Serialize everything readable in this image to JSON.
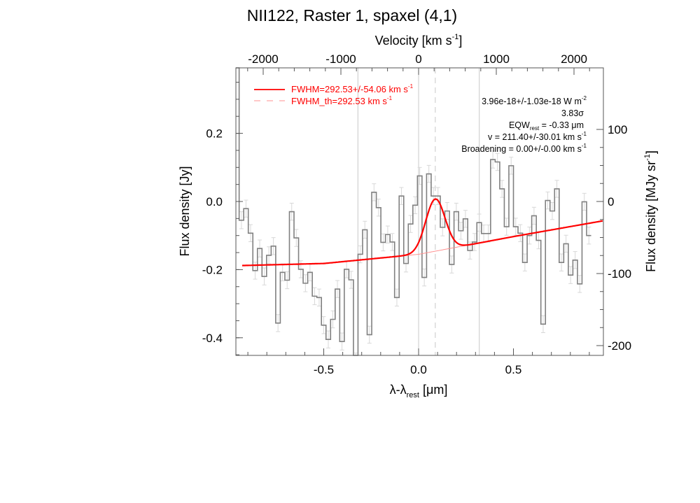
{
  "chart_data": {
    "type": "line",
    "title": "NII122, Raster 1, spaxel (4,1)",
    "xlabel": "λ-λ",
    "xlabel_sub": "rest",
    "xlabel_unit": " [μm]",
    "ylabel": "Flux density [Jy]",
    "y2label": "Flux density [MJy sr",
    "y2label_sup": "-1",
    "y2label_end": "]",
    "x2label": "Velocity [km s",
    "x2label_sup": "-1",
    "x2label_end": "]",
    "xlim": [
      -0.963,
      0.974
    ],
    "ylim": [
      -0.45,
      0.398
    ],
    "xticks": [
      -0.5,
      0.0,
      0.5
    ],
    "xtick_labels": [
      "-0.5",
      "0.0",
      "0.5"
    ],
    "yticks": [
      0.2,
      0.0,
      -0.2,
      -0.4
    ],
    "ytick_labels": [
      "0.2",
      "0.0",
      "-0.2",
      "-0.4"
    ],
    "y2ticks": [
      100,
      0,
      -100,
      -200
    ],
    "y2tick_labels": [
      "100",
      "0",
      "-100",
      "-200"
    ],
    "x2ticks": [
      -2000,
      -1000,
      0,
      1000,
      2000
    ],
    "x2tick_labels": [
      "-2000",
      "-1000",
      "0",
      "1000",
      "2000"
    ],
    "spectrum": {
      "x_start": -0.963,
      "first_bin_width": 0.017,
      "first_bin_value": 0.45,
      "bin_width": 0.0241,
      "values": [
        -0.055,
        -0.021,
        -0.093,
        -0.203,
        -0.138,
        -0.22,
        -0.158,
        -0.131,
        -0.357,
        -0.208,
        -0.231,
        -0.03,
        -0.107,
        -0.199,
        -0.24,
        -0.208,
        -0.278,
        -0.282,
        -0.363,
        -0.405,
        -0.346,
        -0.257,
        -0.411,
        -0.199,
        -0.23,
        -0.47,
        -0.155,
        -0.083,
        -0.391,
        0.027,
        -0.018,
        -0.12,
        -0.097,
        -0.119,
        -0.282,
        0.016,
        -0.182,
        -0.066,
        -0.011,
        0.075,
        -0.223,
        0.081,
        0.016,
        0.016,
        -0.076,
        -0.028,
        -0.185,
        -0.03,
        -0.086,
        -0.051,
        -0.144,
        -0.119,
        -0.062,
        -0.094,
        -0.094,
        0.123,
        0.116,
        0.037,
        -0.074,
        0.105,
        -0.074,
        -0.093,
        -0.179,
        -0.1,
        -0.042,
        -0.114,
        -0.36,
        0.003,
        -0.028,
        0.037,
        -0.179,
        -0.124,
        -0.216,
        -0.172,
        -0.242,
        -0.001,
        -0.1
      ],
      "error": 0.025
    },
    "continuum": [
      [
        -0.93,
        -0.188
      ],
      [
        -0.5,
        -0.182
      ],
      [
        0.0,
        -0.155
      ],
      [
        0.5,
        -0.103
      ],
      [
        0.97,
        -0.057
      ]
    ],
    "gaussian": {
      "center": 0.088,
      "amplitude": 0.153,
      "fwhm": 0.12
    },
    "reference_lines": [
      -0.32,
      0.0,
      0.32
    ],
    "line_center": 0.088,
    "legend": [
      {
        "label": "FWHM=292.53+/-54.06 km s",
        "sup": "-1",
        "style": "solid"
      },
      {
        "label": "FWHM_th=292.53 km s",
        "sup": "-1",
        "style": "dashed"
      }
    ],
    "annotations": {
      "flux": "3.96e-18+/-1.03e-18 W m",
      "flux_sup": "-2",
      "sigma": "3.83σ",
      "eqw": "EQW",
      "eqw_sub": "rest",
      "eqw_val": " = -0.33 μm",
      "velocity": "v = 211.40+/-30.01 km s",
      "velocity_sup": "-1",
      "broadening": "Broadening = 0.00+/-0.00 km s",
      "broadening_sup": "-1"
    },
    "colors": {
      "fit": "#ff0000",
      "fit_light": "#ff9090",
      "spectrum": "#808080",
      "error": "#d8d8d8",
      "grid": "#c8c8c8"
    }
  }
}
